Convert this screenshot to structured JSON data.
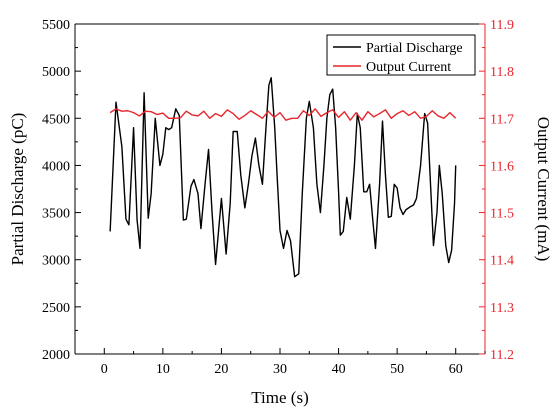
{
  "chart_data": {
    "type": "line",
    "xlabel": "Time (s)",
    "ylabel_left": "Partial Discharge (pC)",
    "ylabel_right": "Output Current (mA)",
    "xlim": [
      -5,
      65
    ],
    "ylim_left": [
      2000,
      5500
    ],
    "ylim_right": [
      11.2,
      11.9
    ],
    "x_ticks": [
      0,
      10,
      20,
      30,
      40,
      50,
      60
    ],
    "y_ticks_left": [
      2000,
      2500,
      3000,
      3500,
      4000,
      4500,
      5000,
      5500
    ],
    "y_ticks_right": [
      11.2,
      11.3,
      11.4,
      11.5,
      11.6,
      11.7,
      11.8,
      11.9
    ],
    "grid": false,
    "legend_position": "top-right",
    "colors": {
      "left_axis": "#000000",
      "right_axis": "#e8262c",
      "pd_series": "#000000",
      "current_series": "#e8262c"
    },
    "series": [
      {
        "name": "Partial Discharge",
        "axis": "left",
        "color": "#000000",
        "points": [
          [
            1,
            3300
          ],
          [
            2,
            4670
          ],
          [
            3,
            4200
          ],
          [
            3.7,
            3430
          ],
          [
            4.2,
            3370
          ],
          [
            5,
            4400
          ],
          [
            5.6,
            3420
          ],
          [
            6.1,
            3120
          ],
          [
            6.8,
            4770
          ],
          [
            7.5,
            3440
          ],
          [
            8,
            3700
          ],
          [
            8.7,
            4500
          ],
          [
            9.5,
            4000
          ],
          [
            10,
            4120
          ],
          [
            10.5,
            4400
          ],
          [
            11,
            4380
          ],
          [
            11.5,
            4400
          ],
          [
            12.2,
            4600
          ],
          [
            12.8,
            4530
          ],
          [
            13.5,
            3420
          ],
          [
            14,
            3430
          ],
          [
            14.8,
            3780
          ],
          [
            15.3,
            3850
          ],
          [
            16,
            3700
          ],
          [
            16.5,
            3330
          ],
          [
            17.2,
            3800
          ],
          [
            17.8,
            4170
          ],
          [
            18.4,
            3500
          ],
          [
            19,
            2950
          ],
          [
            20,
            3650
          ],
          [
            20.8,
            3060
          ],
          [
            21.5,
            3600
          ],
          [
            22,
            4360
          ],
          [
            22.7,
            4360
          ],
          [
            23.3,
            3900
          ],
          [
            24,
            3550
          ],
          [
            24.6,
            3800
          ],
          [
            25.2,
            4100
          ],
          [
            25.8,
            4290
          ],
          [
            26.4,
            4000
          ],
          [
            27,
            3800
          ],
          [
            27.6,
            4400
          ],
          [
            28.1,
            4850
          ],
          [
            28.5,
            4930
          ],
          [
            29.1,
            4400
          ],
          [
            29.5,
            3900
          ],
          [
            30,
            3310
          ],
          [
            30.6,
            3120
          ],
          [
            31.2,
            3310
          ],
          [
            31.8,
            3200
          ],
          [
            32.5,
            2820
          ],
          [
            33.2,
            2850
          ],
          [
            33.8,
            3700
          ],
          [
            34.5,
            4500
          ],
          [
            35,
            4680
          ],
          [
            35.7,
            4400
          ],
          [
            36.3,
            3800
          ],
          [
            36.9,
            3500
          ],
          [
            37.5,
            4000
          ],
          [
            38,
            4500
          ],
          [
            38.5,
            4750
          ],
          [
            39,
            4810
          ],
          [
            39.5,
            4400
          ],
          [
            40,
            3720
          ],
          [
            40.3,
            3260
          ],
          [
            40.8,
            3300
          ],
          [
            41.4,
            3660
          ],
          [
            42,
            3430
          ],
          [
            42.7,
            4000
          ],
          [
            43.2,
            4550
          ],
          [
            43.7,
            4400
          ],
          [
            44.3,
            3720
          ],
          [
            44.8,
            3720
          ],
          [
            45.3,
            3800
          ],
          [
            45.8,
            3450
          ],
          [
            46.3,
            3120
          ],
          [
            47,
            3800
          ],
          [
            47.5,
            4470
          ],
          [
            48,
            3900
          ],
          [
            48.5,
            3450
          ],
          [
            49,
            3460
          ],
          [
            49.5,
            3800
          ],
          [
            50,
            3760
          ],
          [
            50.5,
            3550
          ],
          [
            51,
            3480
          ],
          [
            51.5,
            3530
          ],
          [
            52.2,
            3560
          ],
          [
            52.8,
            3580
          ],
          [
            53.3,
            3650
          ],
          [
            54,
            4000
          ],
          [
            54.7,
            4550
          ],
          [
            55.2,
            4450
          ],
          [
            55.7,
            3800
          ],
          [
            56.2,
            3150
          ],
          [
            56.8,
            3500
          ],
          [
            57.2,
            4000
          ],
          [
            57.7,
            3700
          ],
          [
            58.3,
            3150
          ],
          [
            58.8,
            2970
          ],
          [
            59.3,
            3100
          ],
          [
            59.8,
            3600
          ],
          [
            60,
            4000
          ]
        ]
      },
      {
        "name": "Output Current",
        "axis": "right",
        "color": "#e8262c",
        "points": [
          [
            1,
            11.712
          ],
          [
            2,
            11.72
          ],
          [
            3,
            11.715
          ],
          [
            4,
            11.716
          ],
          [
            5,
            11.712
          ],
          [
            6,
            11.705
          ],
          [
            7,
            11.715
          ],
          [
            8,
            11.714
          ],
          [
            9,
            11.708
          ],
          [
            10,
            11.711
          ],
          [
            11,
            11.7
          ],
          [
            12,
            11.7
          ],
          [
            13,
            11.701
          ],
          [
            14,
            11.715
          ],
          [
            15,
            11.707
          ],
          [
            16,
            11.705
          ],
          [
            17,
            11.715
          ],
          [
            18,
            11.7
          ],
          [
            19,
            11.71
          ],
          [
            20,
            11.704
          ],
          [
            21,
            11.718
          ],
          [
            22,
            11.71
          ],
          [
            23,
            11.698
          ],
          [
            24,
            11.706
          ],
          [
            25,
            11.716
          ],
          [
            26,
            11.708
          ],
          [
            27,
            11.7
          ],
          [
            28,
            11.715
          ],
          [
            29,
            11.702
          ],
          [
            30,
            11.712
          ],
          [
            31,
            11.696
          ],
          [
            32,
            11.7
          ],
          [
            33,
            11.7
          ],
          [
            34,
            11.716
          ],
          [
            35,
            11.706
          ],
          [
            36,
            11.72
          ],
          [
            37,
            11.704
          ],
          [
            38,
            11.712
          ],
          [
            39,
            11.718
          ],
          [
            40,
            11.702
          ],
          [
            41,
            11.714
          ],
          [
            42,
            11.696
          ],
          [
            43,
            11.712
          ],
          [
            44,
            11.696
          ],
          [
            45,
            11.714
          ],
          [
            46,
            11.703
          ],
          [
            47,
            11.71
          ],
          [
            48,
            11.718
          ],
          [
            49,
            11.7
          ],
          [
            50,
            11.71
          ],
          [
            51,
            11.716
          ],
          [
            52,
            11.706
          ],
          [
            53,
            11.714
          ],
          [
            54,
            11.7
          ],
          [
            55,
            11.704
          ],
          [
            56,
            11.716
          ],
          [
            57,
            11.705
          ],
          [
            58,
            11.7
          ],
          [
            59,
            11.712
          ],
          [
            60,
            11.7
          ]
        ]
      }
    ]
  }
}
